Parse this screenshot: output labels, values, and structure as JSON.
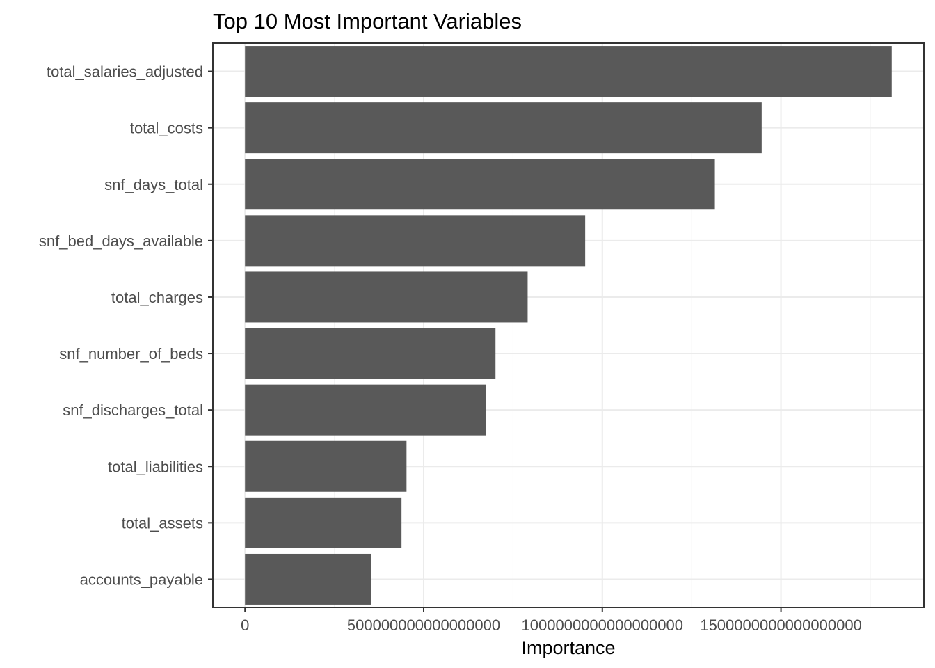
{
  "chart_data": {
    "type": "bar",
    "orientation": "horizontal",
    "title": "Top 10 Most Important Variables",
    "xlabel": "Importance",
    "ylabel": "",
    "categories": [
      "total_salaries_adjusted",
      "total_costs",
      "snf_days_total",
      "snf_bed_days_available",
      "total_charges",
      "snf_number_of_beds",
      "snf_discharges_total",
      "total_liabilities",
      "total_assets",
      "accounts_payable"
    ],
    "values": [
      1810000000000000000,
      1446000000000000000,
      1315000000000000000,
      952000000000000000,
      791000000000000000,
      701000000000000000,
      674000000000000000,
      452000000000000000,
      438000000000000000,
      352000000000000000
    ],
    "xlim": [
      -90000000000000000,
      1900000000000000000
    ],
    "xticks": [
      0,
      500000000000000000,
      1000000000000000000,
      1500000000000000000
    ],
    "xtick_labels": [
      "0",
      "500000000000000000",
      "1000000000000000000",
      "1500000000000000000"
    ],
    "bar_color": "#595959",
    "grid": true,
    "legend": "none"
  }
}
